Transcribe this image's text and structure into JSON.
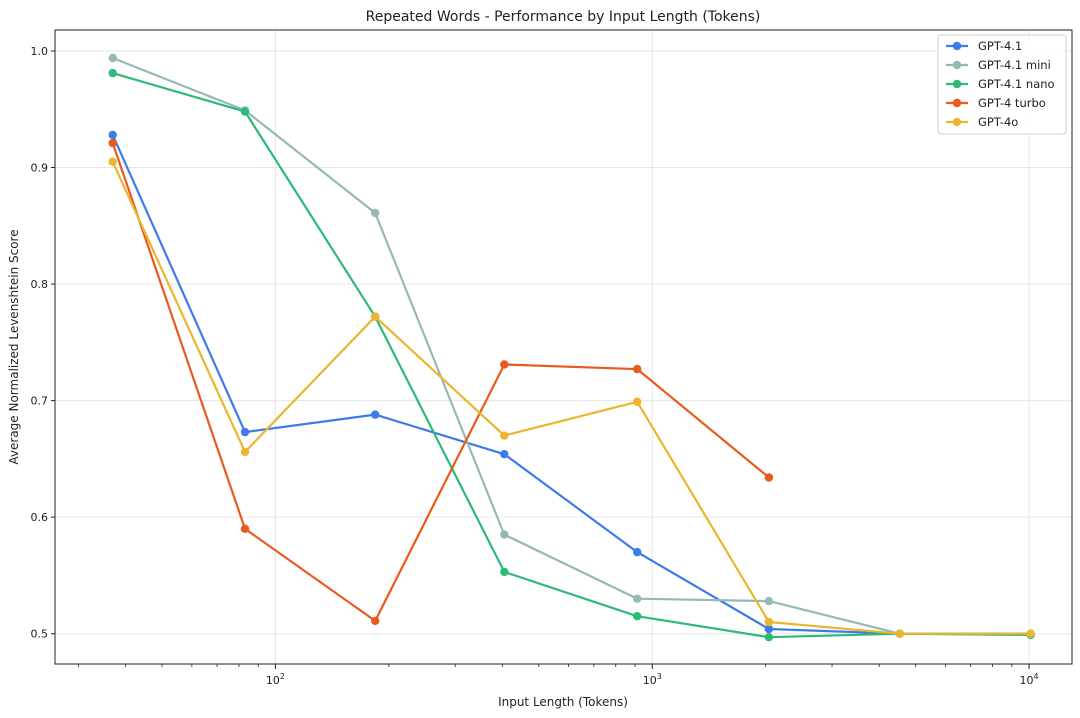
{
  "chart_data": {
    "type": "line",
    "title": "Repeated Words - Performance by Input Length (Tokens)",
    "xlabel": "Input Length (Tokens)",
    "ylabel": "Average Normalized Levenshtein Score",
    "xscale": "log",
    "xlim": [
      26,
      13000
    ],
    "ylim": [
      0.474,
      1.018
    ],
    "x_ticks": [
      {
        "value": 100,
        "base": "10",
        "exp": "2"
      },
      {
        "value": 1000,
        "base": "10",
        "exp": "3"
      },
      {
        "value": 10000,
        "base": "10",
        "exp": "4"
      }
    ],
    "y_ticks": [
      {
        "value": 0.5,
        "label": "0.5"
      },
      {
        "value": 0.6,
        "label": "0.6"
      },
      {
        "value": 0.7,
        "label": "0.7"
      },
      {
        "value": 0.8,
        "label": "0.8"
      },
      {
        "value": 0.9,
        "label": "0.9"
      },
      {
        "value": 1.0,
        "label": "1.0"
      }
    ],
    "grid": true,
    "legend_position": "top-right",
    "x": [
      37,
      83,
      184,
      405,
      912,
      2040,
      4540,
      10100
    ],
    "series": [
      {
        "name": "GPT-4.1",
        "color": "#3f7be8",
        "values": [
          0.928,
          0.673,
          0.688,
          0.654,
          0.57,
          0.504,
          0.5,
          0.5
        ]
      },
      {
        "name": "GPT-4.1 mini",
        "color": "#95b9b6",
        "values": [
          0.994,
          0.949,
          0.861,
          0.585,
          0.53,
          0.528,
          0.5,
          0.499
        ]
      },
      {
        "name": "GPT-4.1 nano",
        "color": "#2db978",
        "values": [
          0.981,
          0.948,
          0.772,
          0.553,
          0.515,
          0.497,
          0.5,
          0.499
        ]
      },
      {
        "name": "GPT-4 turbo",
        "color": "#e85a1e",
        "values": [
          0.921,
          0.59,
          0.511,
          0.731,
          0.727,
          0.634,
          null,
          null
        ]
      },
      {
        "name": "GPT-4o",
        "color": "#ecb530",
        "values": [
          0.905,
          0.656,
          0.772,
          0.67,
          0.699,
          0.51,
          0.5,
          0.5
        ]
      }
    ]
  }
}
